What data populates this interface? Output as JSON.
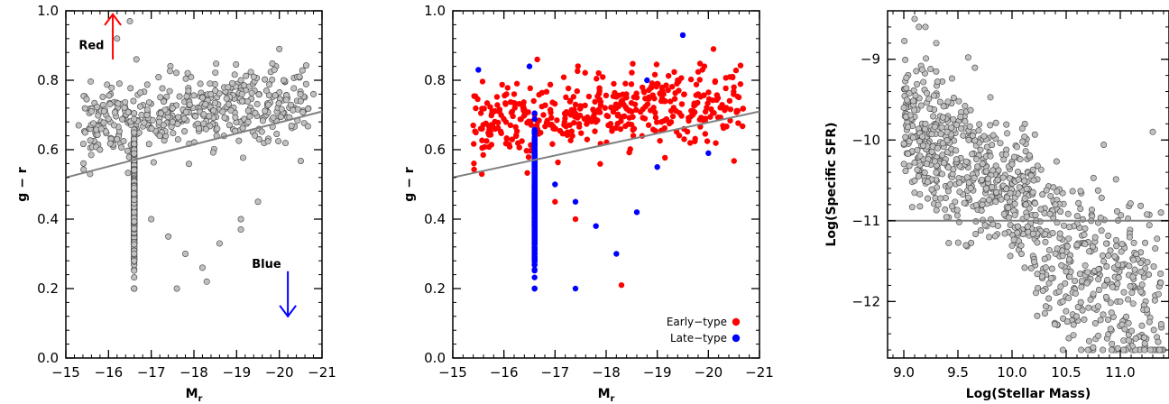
{
  "chart_data": [
    {
      "type": "scatter",
      "xlabel": "M",
      "xlabel_subscript": "r",
      "ylabel": "g − r",
      "xlim": [
        -15,
        -21
      ],
      "ylim": [
        0.0,
        1.0
      ],
      "xticks": [
        -15,
        -16,
        -17,
        -18,
        -19,
        -20,
        -21
      ],
      "yticks": [
        0.0,
        0.2,
        0.4,
        0.6,
        0.8,
        1.0
      ],
      "ytick_labels": [
        "0.0",
        "0.2",
        "0.4",
        "0.6",
        "0.8",
        "1.0"
      ],
      "fitted_line": {
        "points": [
          [
            -15,
            0.52
          ],
          [
            -21,
            0.71
          ]
        ],
        "color": "#808080"
      },
      "annotations": [
        {
          "text": "Red",
          "x": -15.6,
          "y": 0.89,
          "color": "#000000"
        },
        {
          "text": "Blue",
          "x": -19.7,
          "y": 0.26,
          "color": "#000000"
        }
      ],
      "arrows": [
        {
          "direction": "up",
          "x": -16.1,
          "y_from": 0.86,
          "y_to": 0.99,
          "color": "#ff0000"
        },
        {
          "direction": "down",
          "x": -20.2,
          "y_from": 0.25,
          "y_to": 0.12,
          "color": "#0000ff"
        }
      ],
      "series": [
        {
          "color": "#c0c0c0",
          "n_points": 900,
          "points": [
            [
              -16.5,
              0.97
            ],
            [
              -16.2,
              0.92
            ],
            [
              -15.3,
              0.67
            ],
            [
              -15.6,
              0.71
            ],
            [
              -15.8,
              0.6
            ],
            [
              -16.2,
              0.63
            ],
            [
              -16.9,
              0.7
            ],
            [
              -17.2,
              0.64
            ],
            [
              -17.5,
              0.68
            ],
            [
              -17.9,
              0.73
            ],
            [
              -18.2,
              0.75
            ],
            [
              -18.5,
              0.77
            ],
            [
              -18.8,
              0.78
            ],
            [
              -19.1,
              0.8
            ],
            [
              -19.4,
              0.81
            ],
            [
              -19.7,
              0.77
            ],
            [
              -20.1,
              0.8
            ],
            [
              -20.5,
              0.74
            ],
            [
              -20.8,
              0.76
            ],
            [
              -17.0,
              0.4
            ],
            [
              -17.4,
              0.35
            ],
            [
              -17.8,
              0.3
            ],
            [
              -18.2,
              0.26
            ],
            [
              -18.6,
              0.33
            ],
            [
              -19.1,
              0.4
            ],
            [
              -19.5,
              0.45
            ],
            [
              -17.6,
              0.2
            ],
            [
              -18.3,
              0.22
            ],
            [
              -20.0,
              0.89
            ],
            [
              -19.1,
              0.37
            ]
          ]
        }
      ]
    },
    {
      "type": "scatter",
      "xlabel": "M",
      "xlabel_subscript": "r",
      "ylabel": "g − r",
      "xlim": [
        -15,
        -21
      ],
      "ylim": [
        0.0,
        1.0
      ],
      "xticks": [
        -15,
        -16,
        -17,
        -18,
        -19,
        -20,
        -21
      ],
      "yticks": [
        0.0,
        0.2,
        0.4,
        0.6,
        0.8,
        1.0
      ],
      "ytick_labels": [
        "0.0",
        "0.2",
        "0.4",
        "0.6",
        "0.8",
        "1.0"
      ],
      "fitted_line": {
        "points": [
          [
            -15,
            0.52
          ],
          [
            -21,
            0.71
          ]
        ],
        "color": "#808080"
      },
      "legend": {
        "placement": "bottom-right",
        "entries": [
          {
            "label": "Early−type",
            "color": "#ff0000"
          },
          {
            "label": "Late−type",
            "color": "#0000ff"
          }
        ]
      },
      "series": [
        {
          "name": "Early−type",
          "color": "#ff0000",
          "n_points": 430,
          "points": [
            [
              -15.4,
              0.67
            ],
            [
              -15.8,
              0.71
            ],
            [
              -16.2,
              0.76
            ],
            [
              -16.6,
              0.7
            ],
            [
              -17.0,
              0.66
            ],
            [
              -17.4,
              0.73
            ],
            [
              -17.8,
              0.68
            ],
            [
              -18.2,
              0.72
            ],
            [
              -18.6,
              0.75
            ],
            [
              -19.0,
              0.79
            ],
            [
              -19.4,
              0.8
            ],
            [
              -19.8,
              0.76
            ],
            [
              -20.1,
              0.89
            ],
            [
              -20.5,
              0.78
            ],
            [
              -17.0,
              0.45
            ],
            [
              -17.4,
              0.4
            ],
            [
              -18.3,
              0.21
            ]
          ]
        },
        {
          "name": "Late−type",
          "color": "#0000ff",
          "n_points": 470,
          "points": [
            [
              -15.5,
              0.83
            ],
            [
              -16.5,
              0.84
            ],
            [
              -17.0,
              0.5
            ],
            [
              -17.4,
              0.45
            ],
            [
              -17.8,
              0.38
            ],
            [
              -18.2,
              0.3
            ],
            [
              -18.6,
              0.42
            ],
            [
              -19.0,
              0.55
            ],
            [
              -19.5,
              0.93
            ],
            [
              -17.4,
              0.2
            ],
            [
              -20.0,
              0.59
            ],
            [
              -18.8,
              0.8
            ]
          ]
        }
      ]
    },
    {
      "type": "scatter",
      "xlabel": "Log(Stellar Mass)",
      "ylabel": "Log(Specific SFR)",
      "xlim": [
        8.85,
        11.45
      ],
      "ylim": [
        -12.7,
        -8.4
      ],
      "xticks": [
        9.0,
        9.5,
        10.0,
        10.5,
        11.0
      ],
      "xtick_labels": [
        "9.0",
        "9.5",
        "10.0",
        "10.5",
        "11.0"
      ],
      "yticks": [
        -9,
        -10,
        -11,
        -12
      ],
      "ytick_labels": [
        "−9",
        "−10",
        "−11",
        "−12"
      ],
      "fitted_line": {
        "points": [
          [
            8.85,
            -11.0
          ],
          [
            11.45,
            -11.0
          ]
        ],
        "color": "#808080"
      },
      "series": [
        {
          "color": "#c0c0c0",
          "n_points": 900,
          "points": [
            [
              9.1,
              -8.5
            ],
            [
              9.2,
              -8.6
            ],
            [
              9.3,
              -8.8
            ],
            [
              9.0,
              -9.6
            ],
            [
              9.2,
              -9.8
            ],
            [
              9.4,
              -9.9
            ],
            [
              9.6,
              -10.0
            ],
            [
              9.8,
              -10.2
            ],
            [
              10.0,
              -10.3
            ],
            [
              10.2,
              -10.5
            ],
            [
              10.4,
              -10.8
            ],
            [
              10.6,
              -11.3
            ],
            [
              10.8,
              -11.6
            ],
            [
              11.0,
              -12.0
            ],
            [
              11.2,
              -12.3
            ],
            [
              11.35,
              -12.5
            ],
            [
              10.7,
              -12.6
            ],
            [
              11.3,
              -9.9
            ]
          ]
        }
      ]
    }
  ]
}
